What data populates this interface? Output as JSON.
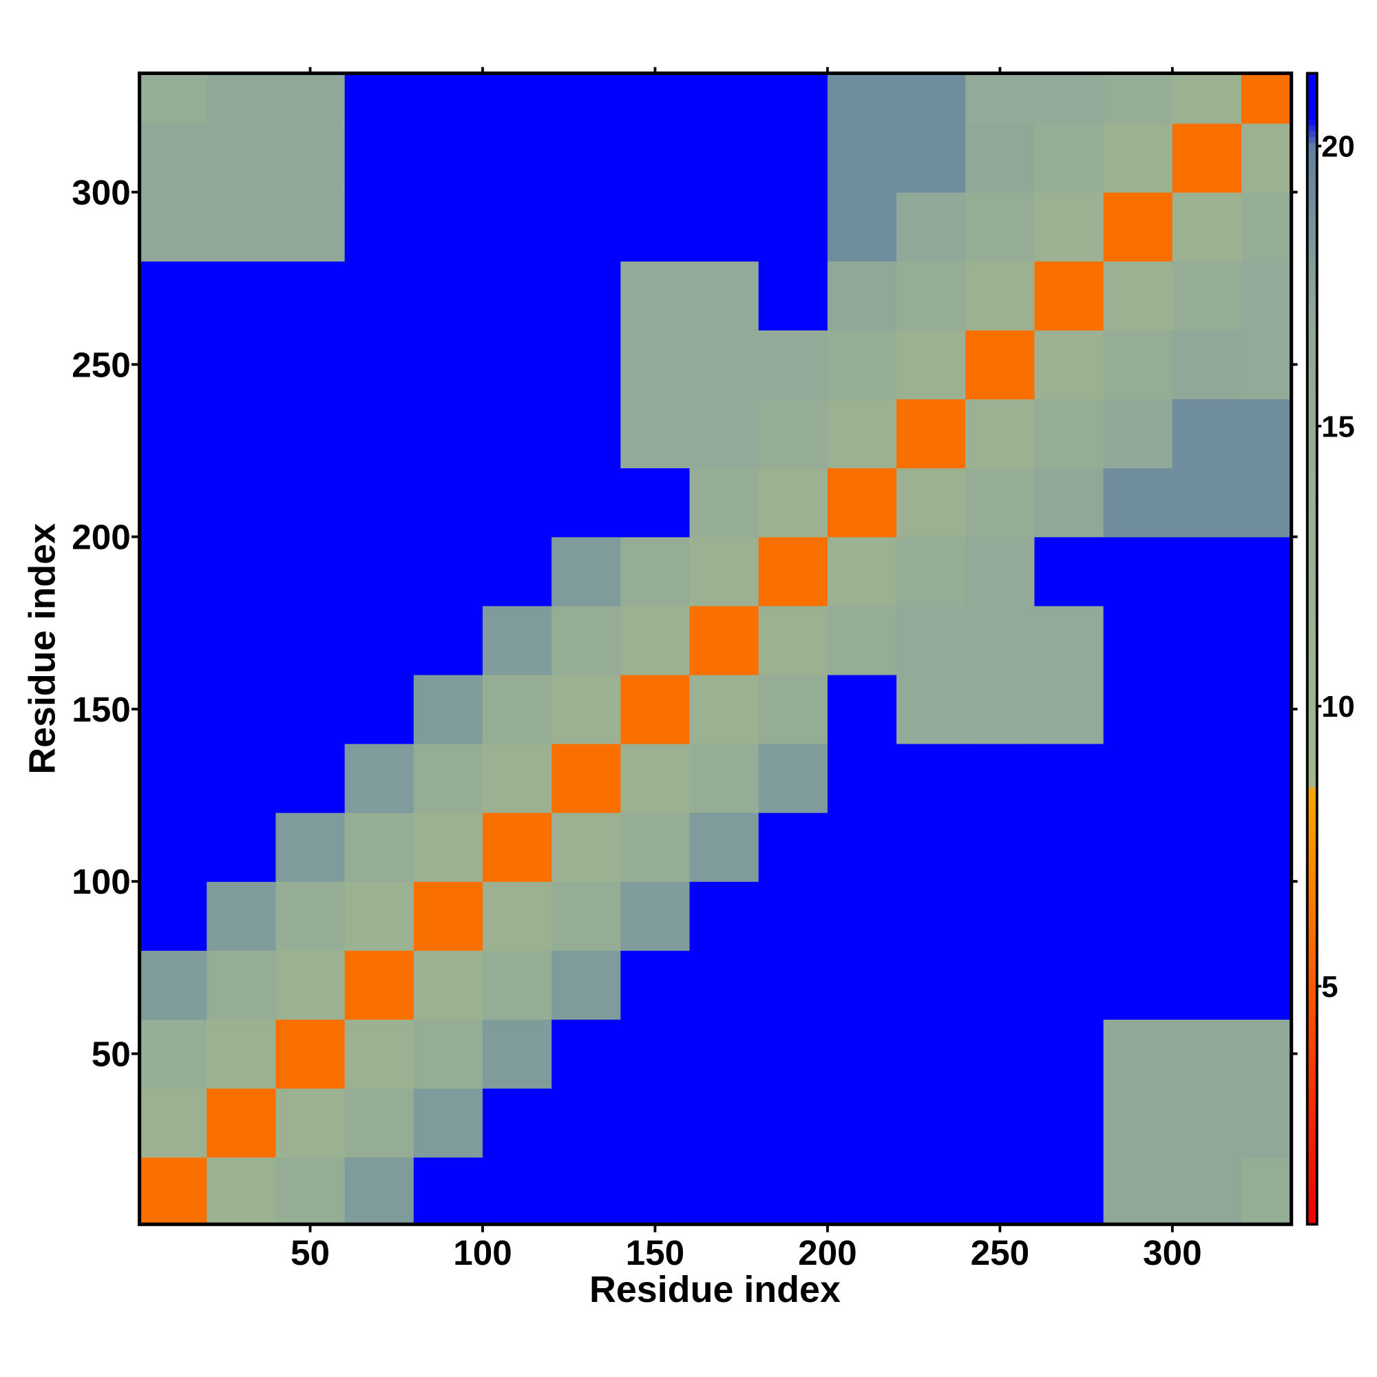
{
  "chart_data": {
    "type": "heatmap",
    "xlabel": "Residue index",
    "ylabel": "Residue index",
    "x": [
      10,
      30,
      50,
      70,
      90,
      110,
      130,
      150,
      170,
      190,
      210,
      230,
      250,
      270,
      290,
      310,
      330
    ],
    "y": [
      10,
      30,
      50,
      70,
      90,
      110,
      130,
      150,
      170,
      190,
      210,
      230,
      250,
      270,
      290,
      310,
      330
    ],
    "z": [
      [
        6,
        12,
        15,
        18,
        21,
        21,
        21,
        21,
        21,
        21,
        21,
        21,
        21,
        21,
        17,
        17,
        15
      ],
      [
        12,
        6,
        12,
        15,
        18,
        21,
        21,
        21,
        21,
        21,
        21,
        21,
        21,
        21,
        17,
        17,
        17
      ],
      [
        15,
        12,
        6,
        12,
        15,
        18,
        21,
        21,
        21,
        21,
        21,
        21,
        21,
        21,
        17,
        17,
        17
      ],
      [
        18,
        15,
        12,
        6,
        12,
        15,
        18,
        21,
        21,
        21,
        21,
        21,
        21,
        21,
        21,
        21,
        21
      ],
      [
        21,
        18,
        15,
        12,
        6,
        12,
        15,
        18,
        21,
        21,
        21,
        21,
        21,
        21,
        21,
        21,
        21
      ],
      [
        21,
        21,
        18,
        15,
        12,
        6,
        12,
        15,
        18,
        21,
        21,
        21,
        21,
        21,
        21,
        21,
        21
      ],
      [
        21,
        21,
        21,
        18,
        15,
        12,
        6,
        12,
        15,
        18,
        21,
        21,
        21,
        21,
        21,
        21,
        21
      ],
      [
        21,
        21,
        21,
        21,
        18,
        15,
        12,
        6,
        12,
        15,
        21,
        16,
        16,
        16,
        21,
        21,
        21
      ],
      [
        21,
        21,
        21,
        21,
        21,
        18,
        15,
        12,
        6,
        12,
        15,
        16,
        16,
        16,
        21,
        21,
        21
      ],
      [
        21,
        21,
        21,
        21,
        21,
        21,
        18,
        15,
        12,
        6,
        12,
        15,
        16,
        21,
        21,
        21,
        21
      ],
      [
        21,
        21,
        21,
        21,
        21,
        21,
        21,
        21,
        15,
        12,
        6,
        12,
        15,
        17,
        19,
        19,
        19
      ],
      [
        21,
        21,
        21,
        21,
        21,
        21,
        21,
        16,
        16,
        15,
        12,
        6,
        12,
        15,
        17,
        19,
        19
      ],
      [
        21,
        21,
        21,
        21,
        21,
        21,
        21,
        16,
        16,
        16,
        15,
        12,
        6,
        12,
        15,
        17,
        16
      ],
      [
        21,
        21,
        21,
        21,
        21,
        21,
        21,
        16,
        16,
        21,
        17,
        15,
        12,
        6,
        12,
        15,
        16
      ],
      [
        17,
        17,
        17,
        21,
        21,
        21,
        21,
        21,
        21,
        21,
        19,
        17,
        15,
        12,
        6,
        12,
        15
      ],
      [
        17,
        17,
        17,
        21,
        21,
        21,
        21,
        21,
        21,
        21,
        19,
        19,
        17,
        15,
        12,
        6,
        12
      ],
      [
        15,
        17,
        17,
        21,
        21,
        21,
        21,
        21,
        21,
        21,
        19,
        19,
        16,
        16,
        15,
        12,
        6
      ]
    ],
    "xlim": [
      0.5,
      334.5
    ],
    "ylim": [
      0.5,
      334.5
    ],
    "xticks": [
      50,
      100,
      150,
      200,
      250,
      300
    ],
    "yticks": [
      50,
      100,
      150,
      200,
      250,
      300
    ],
    "zlim": [
      0.75,
      21.3
    ],
    "zticks": [
      5,
      10,
      15,
      20
    ],
    "colorscale": [
      [
        0.75,
        "#ee0000"
      ],
      [
        8.5,
        "#ffa500"
      ],
      [
        8.55,
        "#a4b88c"
      ],
      [
        17,
        "#90a898"
      ],
      [
        20,
        "#6080a0"
      ],
      [
        20.5,
        "#0000ff"
      ],
      [
        21.3,
        "#0000ff"
      ]
    ]
  }
}
